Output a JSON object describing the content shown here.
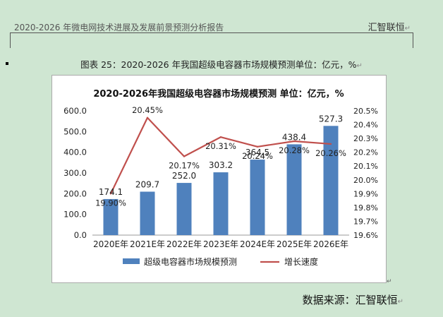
{
  "header": {
    "doc_title": "2020-2026 年微电网技术进展及发展前景预测分析报告",
    "company": "汇智联恒",
    "edit_mark": "↵"
  },
  "caption": {
    "text": "图表 25：2020-2026 年我国超级电容器市场规模预测单位：亿元，%",
    "edit_mark": "↵"
  },
  "source": {
    "text": "数据来源：汇智联恒",
    "edit_mark": "↵"
  },
  "chart_data": {
    "type": "bar",
    "title": "2020-2026年我国超级电容器市场规模预测 单位：亿元，%",
    "categories": [
      "2020E年",
      "2021E年",
      "2022E年",
      "2023E年",
      "2024E年",
      "2025E年",
      "2026E年"
    ],
    "series": [
      {
        "name": "超级电容器市场规模预测",
        "type": "bar",
        "axis": "left",
        "color": "#4f81bd",
        "values": [
          174.1,
          209.7,
          252.0,
          303.2,
          364.5,
          438.4,
          527.3
        ],
        "labels": [
          "174.1",
          "209.7",
          "252.0",
          "303.2",
          "364.5",
          "438.4",
          "527.3"
        ]
      },
      {
        "name": "增长速度",
        "type": "line",
        "axis": "right",
        "color": "#c0504d",
        "values": [
          19.9,
          20.45,
          20.17,
          20.31,
          20.24,
          20.28,
          20.26
        ],
        "labels": [
          "19.90%",
          "20.45%",
          "20.17%",
          "20.31%",
          "20.24%",
          "20.28%",
          "20.26%"
        ]
      }
    ],
    "y_left": {
      "range": [
        0,
        600
      ],
      "ticks": [
        "0.0",
        "100.0",
        "200.0",
        "300.0",
        "400.0",
        "500.0",
        "600.0"
      ]
    },
    "y_right": {
      "range": [
        19.6,
        20.5
      ],
      "ticks": [
        "19.6%",
        "19.7%",
        "19.8%",
        "19.9%",
        "20.0%",
        "20.1%",
        "20.2%",
        "20.3%",
        "20.4%",
        "20.5%"
      ]
    },
    "legend_position": "bottom",
    "grid": false
  }
}
